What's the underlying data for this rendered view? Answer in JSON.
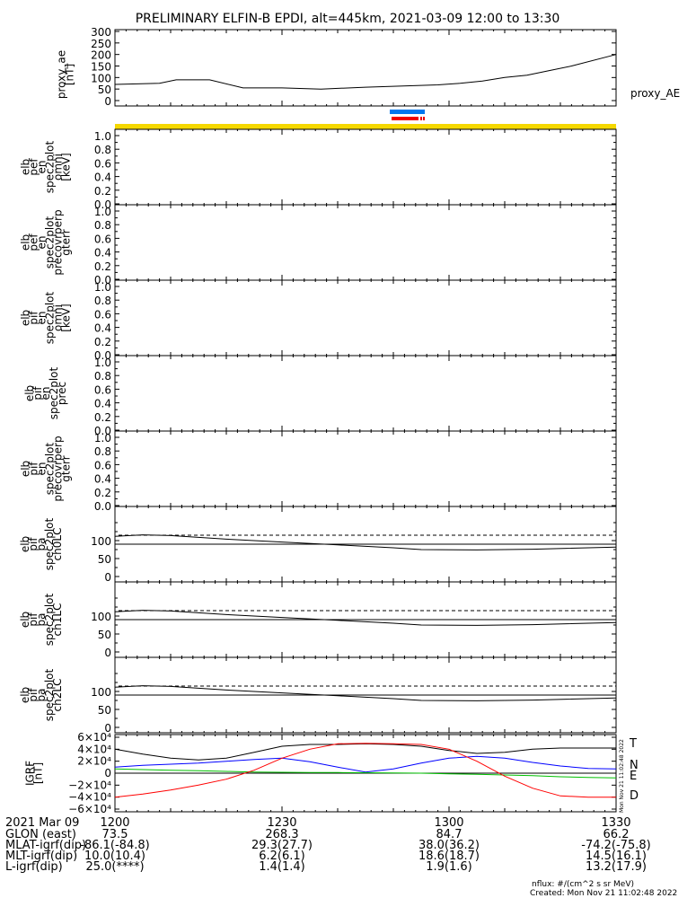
{
  "title": "PRELIMINARY ELFIN-B EPDI, alt=445km, 2021-03-09 12:00 to 13:30",
  "proxy_panel": {
    "ylabel": [
      "proxy_ae",
      "[nT]"
    ],
    "series_label": "proxy_AE",
    "yticks": [
      0,
      50,
      100,
      150,
      200,
      250,
      300
    ]
  },
  "empty_panels": [
    {
      "ylabel": [
        "elb",
        "pef",
        "en",
        "spec2plot",
        "omni",
        "[keV]"
      ]
    },
    {
      "ylabel": [
        "elb",
        "pef",
        "en",
        "spec2plot",
        "precovrperp",
        "gterr"
      ]
    },
    {
      "ylabel": [
        "elb",
        "pif",
        "en",
        "spec2plot",
        "omni",
        "[keV]"
      ]
    },
    {
      "ylabel": [
        "elb",
        "pif",
        "en",
        "spec2plot",
        "prec"
      ]
    },
    {
      "ylabel": [
        "elb",
        "pif",
        "en",
        "spec2plot",
        "precovrperp",
        "gterr"
      ]
    }
  ],
  "empty_yticks": [
    "0.0",
    "0.2",
    "0.4",
    "0.6",
    "0.8",
    "1.0"
  ],
  "pa_panels": [
    {
      "ylabel": [
        "elb",
        "pif",
        "pa",
        "spec2plot",
        "ch0LC"
      ]
    },
    {
      "ylabel": [
        "elb",
        "pif",
        "pa",
        "spec2plot",
        "ch1LC"
      ]
    },
    {
      "ylabel": [
        "elb",
        "pif",
        "pa",
        "spec2plot",
        "ch2LC"
      ]
    }
  ],
  "pa_yticks": [
    0,
    50,
    100
  ],
  "grf_panel": {
    "ylabel": [
      "IGRF",
      "[nT]"
    ],
    "ytick_labels": [
      "6×10⁴",
      "4×10⁴",
      "2×10⁴",
      "0",
      "−2×10⁴",
      "−4×10⁴",
      "−6×10⁴"
    ],
    "legend": [
      {
        "label": "T",
        "color": "#000000"
      },
      {
        "label": "N",
        "color": "#0000ff"
      },
      {
        "label": "E",
        "color": "#00c000"
      },
      {
        "label": "D",
        "color": "#ff0000"
      }
    ],
    "side_stamp": "Mon Nov 21 11:02:48 2022"
  },
  "orbit_table": {
    "date": "2021 Mar 09",
    "columns": [
      "1200",
      "1230",
      "1300",
      "1330"
    ],
    "rows": [
      {
        "label": "GLON (east)",
        "values": [
          "73.5",
          "268.3",
          "84.7",
          "66.2"
        ]
      },
      {
        "label": "MLAT-igrf(dip)",
        "values": [
          "-86.1(-84.8)",
          "29.3(27.7)",
          "38.0(36.2)",
          "-74.2(-75.8)"
        ]
      },
      {
        "label": "MLT-igrf(dip)",
        "values": [
          "10.0(10.4)",
          "6.2(6.1)",
          "18.6(18.7)",
          "14.5(16.1)"
        ]
      },
      {
        "label": "L-igrf(dip)",
        "values": [
          "25.0(****)",
          "1.4(1.4)",
          "1.9(1.6)",
          "13.2(17.9)"
        ]
      }
    ]
  },
  "footer": {
    "nflux": "nflux: #/(cm^2 s sr MeV)",
    "created": "Created: Mon Nov 21 11:02:48 2022"
  },
  "colors": {
    "science_bar": "#0077ee",
    "fast_bar": "#ee0000",
    "yellow_bar": "#f5d800"
  },
  "chart_data": [
    {
      "type": "line",
      "name": "proxy_AE",
      "x_minutes_after_1200": [
        0,
        8,
        11,
        17,
        23,
        30,
        37,
        45,
        58,
        62,
        66,
        70,
        74,
        78,
        82,
        90
      ],
      "y_nT": [
        70,
        75,
        90,
        90,
        55,
        55,
        50,
        58,
        68,
        75,
        85,
        100,
        110,
        130,
        150,
        200
      ],
      "ylim": [
        0,
        300
      ]
    },
    {
      "type": "line",
      "name": "IGRF",
      "x_minutes_after_1200": [
        0,
        5,
        10,
        15,
        20,
        25,
        30,
        35,
        40,
        45,
        50,
        55,
        60,
        65,
        70,
        75,
        80,
        85,
        90
      ],
      "T": [
        40000,
        32000,
        25000,
        22000,
        25000,
        35000,
        45000,
        48000,
        48000,
        49000,
        48000,
        45000,
        38000,
        33000,
        35000,
        40000,
        42000,
        42000,
        42000
      ],
      "N": [
        10000,
        13000,
        15000,
        17000,
        20000,
        23000,
        25000,
        19000,
        10000,
        2000,
        7000,
        17000,
        25000,
        28000,
        25000,
        18000,
        12000,
        8000,
        7000
      ],
      "E": [
        7000,
        6000,
        5000,
        4000,
        3000,
        2000,
        1500,
        1000,
        1000,
        800,
        500,
        0,
        -1000,
        -2000,
        -3000,
        -4000,
        -6000,
        -7000,
        -8000
      ],
      "D": [
        -40000,
        -35000,
        -28000,
        -20000,
        -10000,
        5000,
        25000,
        40000,
        49000,
        50000,
        49000,
        48000,
        40000,
        20000,
        -5000,
        -25000,
        -38000,
        -40000,
        -40000
      ],
      "ylim": [
        -60000,
        60000
      ]
    }
  ]
}
